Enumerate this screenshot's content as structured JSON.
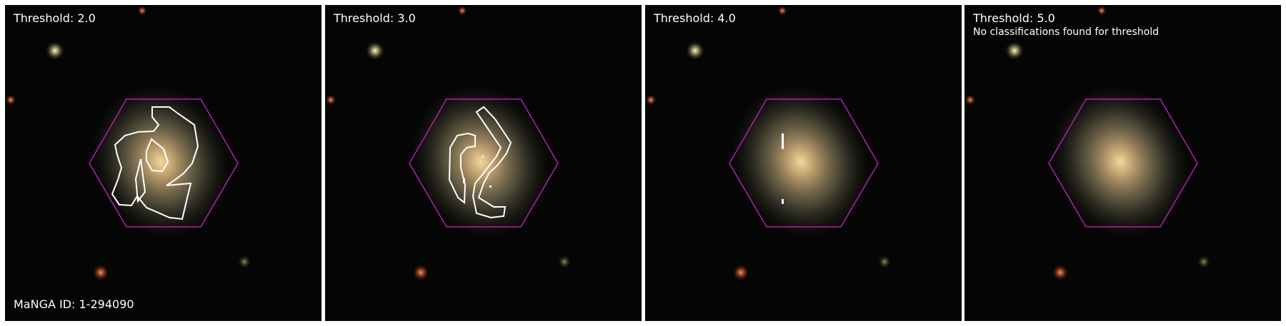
{
  "panels": [
    {
      "threshold_label": "Threshold: 2.0",
      "note": "",
      "manga_id": "MaNGA ID: 1-294090"
    },
    {
      "threshold_label": "Threshold: 3.0",
      "note": "",
      "manga_id": ""
    },
    {
      "threshold_label": "Threshold: 4.0",
      "note": "",
      "manga_id": ""
    },
    {
      "threshold_label": "Threshold: 5.0",
      "note": "No classifications found for threshold",
      "manga_id": ""
    }
  ],
  "colors": {
    "hexagon": "#b020b0",
    "contour": "#ffffff",
    "background": "#050505"
  }
}
